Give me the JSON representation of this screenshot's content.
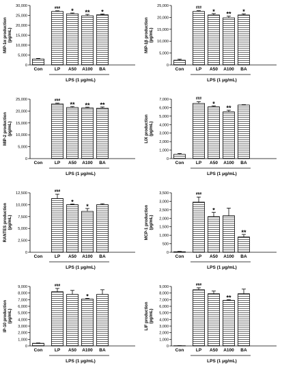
{
  "chart_data": [
    {
      "type": "bar",
      "ylabel": "MIP-1α production (pg/mL)",
      "categories": [
        "Con",
        "LP",
        "A50",
        "A100",
        "BA"
      ],
      "values": [
        3000,
        27000,
        25800,
        24800,
        25300
      ],
      "errors": [
        300,
        300,
        400,
        700,
        400
      ],
      "significance": [
        "",
        "###",
        "*",
        "**",
        "*"
      ],
      "ylim": [
        0,
        30000
      ],
      "yticks": [
        "0",
        "5,000",
        "10,000",
        "15,000",
        "20,000",
        "25,000",
        "30,000"
      ],
      "group_label": "LPS (1 μg/mL)"
    },
    {
      "type": "bar",
      "ylabel": "MIP-1β production (pg/mL)",
      "categories": [
        "Con",
        "LP",
        "A50",
        "A100",
        "BA"
      ],
      "values": [
        2000,
        22500,
        21000,
        19800,
        21000
      ],
      "errors": [
        400,
        300,
        600,
        700,
        500
      ],
      "significance": [
        "",
        "###",
        "*",
        "**",
        "*"
      ],
      "ylim": [
        0,
        25000
      ],
      "yticks": [
        "0",
        "5,000",
        "10,000",
        "15,000",
        "20,000",
        "25,000"
      ],
      "group_label": "LPS (1 μg/mL)"
    },
    {
      "type": "bar",
      "ylabel": "MIP-2 production (pg/mL)",
      "categories": [
        "Con",
        "LP",
        "A50",
        "A100",
        "BA"
      ],
      "values": [
        0,
        23000,
        21500,
        21300,
        21200
      ],
      "errors": [
        0,
        300,
        400,
        300,
        500
      ],
      "significance": [
        "",
        "###",
        "**",
        "**",
        "**"
      ],
      "ylim": [
        0,
        25000
      ],
      "yticks": [
        "0",
        "5,000",
        "10,000",
        "15,000",
        "20,000",
        "25,000"
      ],
      "group_label": "LPS (1 μg/mL)"
    },
    {
      "type": "bar",
      "ylabel": "LIX production (pg/mL)",
      "categories": [
        "Con",
        "LP",
        "A50",
        "A100",
        "BA"
      ],
      "values": [
        500,
        6500,
        6100,
        5500,
        6300
      ],
      "errors": [
        100,
        200,
        100,
        200,
        50
      ],
      "significance": [
        "",
        "###",
        "*",
        "**",
        ""
      ],
      "ylim": [
        0,
        7000
      ],
      "yticks": [
        "0",
        "1,000",
        "2,000",
        "3,000",
        "4,000",
        "5,000",
        "6,000",
        "7,000"
      ],
      "group_label": "LPS (1 μg/mL)"
    },
    {
      "type": "bar",
      "ylabel": "RANTES production (pg/mL)",
      "categories": [
        "Con",
        "LP",
        "A50",
        "A100",
        "BA"
      ],
      "values": [
        0,
        11300,
        10000,
        8600,
        10000
      ],
      "errors": [
        0,
        900,
        150,
        600,
        200
      ],
      "significance": [
        "",
        "###",
        "*",
        "*",
        ""
      ],
      "ylim": [
        0,
        12500
      ],
      "yticks": [
        "0",
        "2,500",
        "5,000",
        "7,500",
        "10,000",
        "12,500"
      ],
      "group_label": "LPS (1 μg/mL)"
    },
    {
      "type": "bar",
      "ylabel": "MCP-1 production (pg/mL)",
      "categories": [
        "Con",
        "LP",
        "A50",
        "A100",
        "BA"
      ],
      "values": [
        30,
        2950,
        2100,
        2150,
        900
      ],
      "errors": [
        20,
        300,
        250,
        450,
        150
      ],
      "significance": [
        "",
        "###",
        "*",
        "",
        "**"
      ],
      "ylim": [
        0,
        3500
      ],
      "yticks": [
        "0",
        "500",
        "1,000",
        "1,500",
        "2,000",
        "2,500",
        "3,000",
        "3,500"
      ],
      "group_label": "LPS (1 μg/mL)"
    },
    {
      "type": "bar",
      "ylabel": "IP-10 production (pg/mL)",
      "categories": [
        "Con",
        "LP",
        "A50",
        "A100",
        "BA"
      ],
      "values": [
        400,
        8200,
        7800,
        7100,
        7800
      ],
      "errors": [
        50,
        500,
        600,
        100,
        700
      ],
      "significance": [
        "",
        "###",
        "",
        "*",
        ""
      ],
      "ylim": [
        0,
        9000
      ],
      "yticks": [
        "0",
        "1,000",
        "2,000",
        "3,000",
        "4,000",
        "5,000",
        "6,000",
        "7,000",
        "8,000",
        "9,000"
      ],
      "group_label": "LPS (1 μg/mL)"
    },
    {
      "type": "bar",
      "ylabel": "LIF production (pg/mL)",
      "categories": [
        "Con",
        "LP",
        "A50",
        "A100",
        "BA"
      ],
      "values": [
        30,
        8500,
        7900,
        6900,
        7900
      ],
      "errors": [
        10,
        300,
        400,
        100,
        700
      ],
      "significance": [
        "",
        "###",
        "",
        "**",
        ""
      ],
      "ylim": [
        0,
        9000
      ],
      "yticks": [
        "0",
        "1,000",
        "2,000",
        "3,000",
        "4,000",
        "5,000",
        "6,000",
        "7,000",
        "8,000",
        "9,000"
      ],
      "group_label": "LPS (1 μg/mL)"
    }
  ]
}
